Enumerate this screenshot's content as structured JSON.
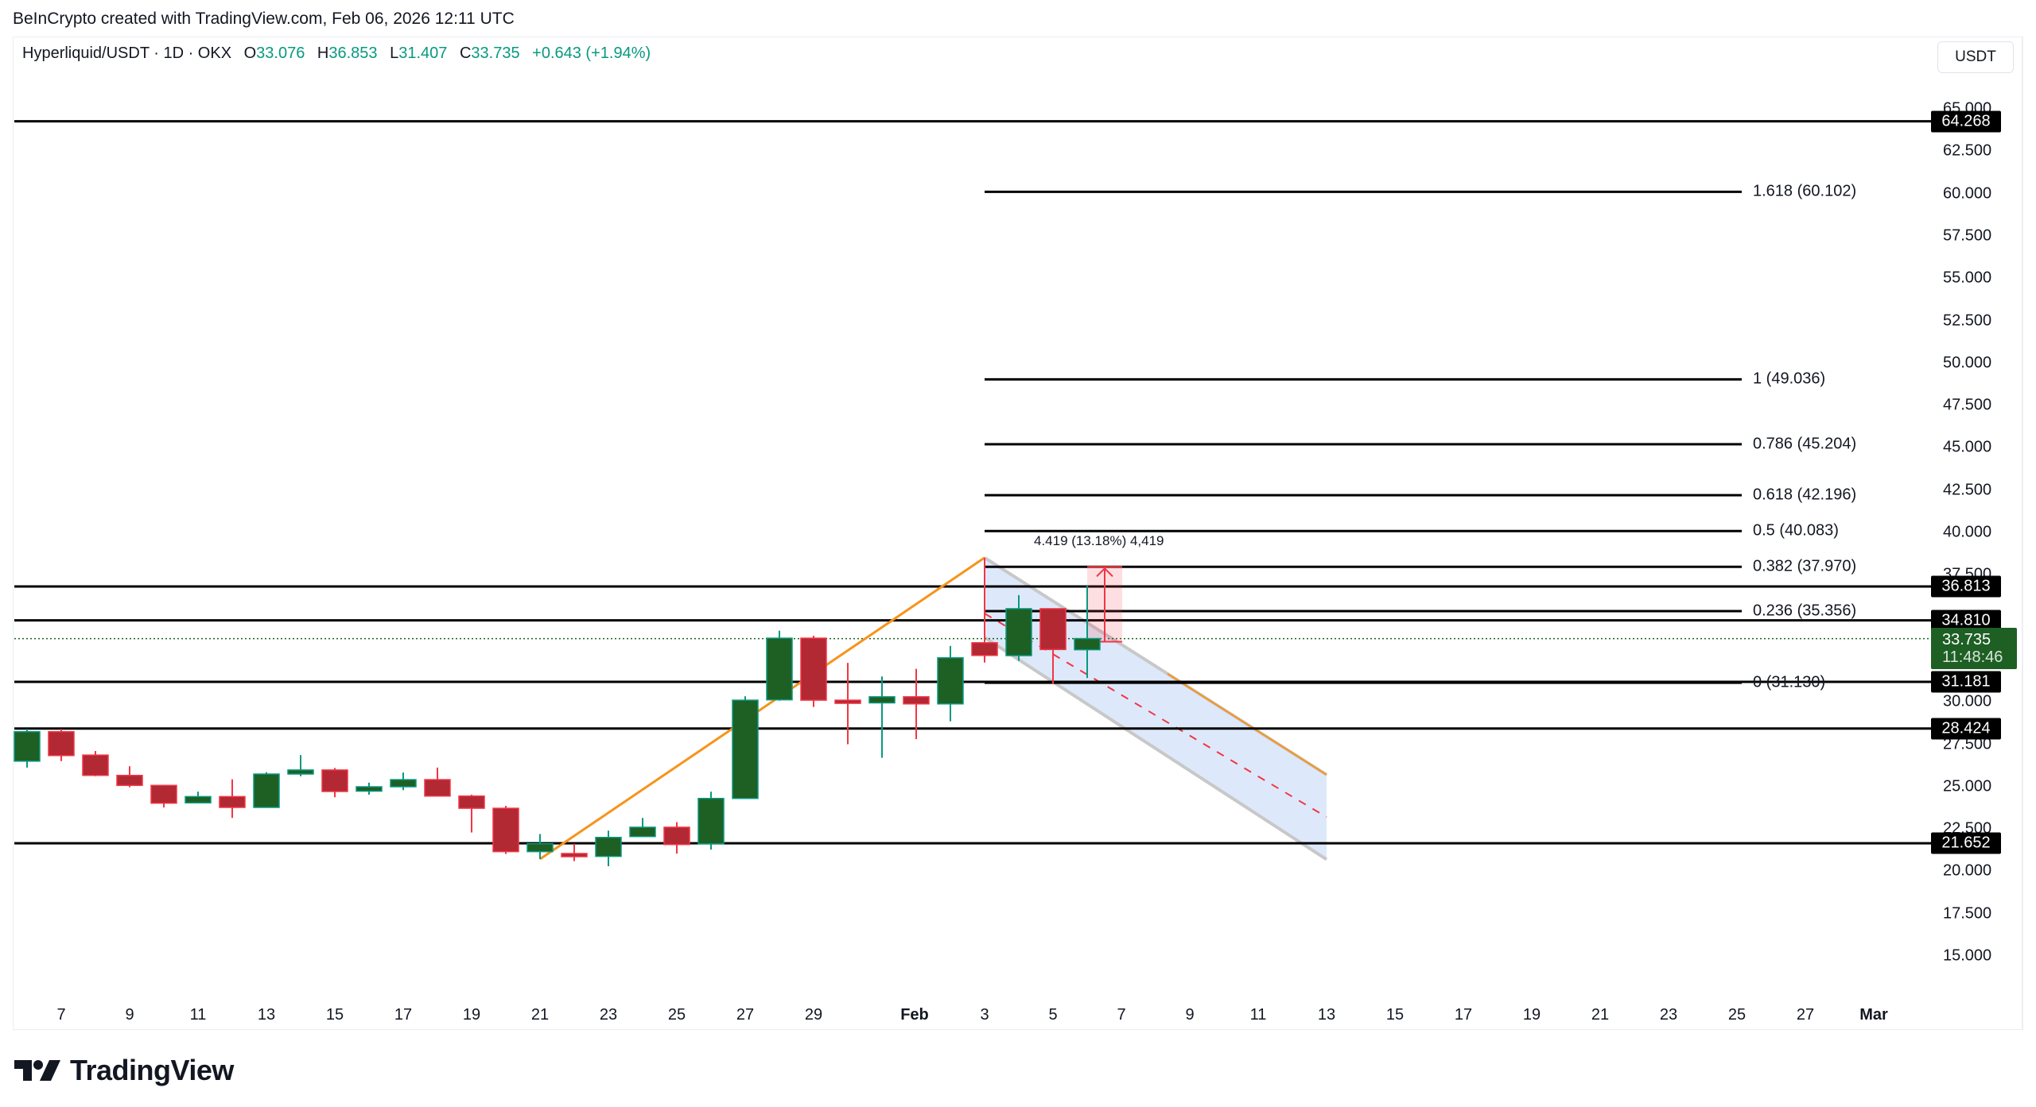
{
  "credit": "BeInCrypto created with TradingView.com, Feb 06, 2026 12:11 UTC",
  "legend": {
    "symbol": "Hyperliquid/USDT · 1D · OKX",
    "o_label": "O",
    "o": "33.076",
    "h_label": "H",
    "h": "36.853",
    "l_label": "L",
    "l": "31.407",
    "c_label": "C",
    "c": "33.735",
    "change": "+0.643 (+1.94%)"
  },
  "currency": "USDT",
  "colors": {
    "up": "#1e5f24",
    "up_border": "#089981",
    "down": "#b22833",
    "down_border": "#f23645",
    "level_line": "#000000",
    "trend_line": "#f7931a",
    "channel_fill": "#dbe8fa",
    "channel_border": "#c8c8c8",
    "channel_mid": "#f23645",
    "last_price": "#1e5f24"
  },
  "y_axis": {
    "ticks": [
      "65.000",
      "62.500",
      "60.000",
      "57.500",
      "55.000",
      "52.500",
      "50.000",
      "47.500",
      "45.000",
      "42.500",
      "40.000",
      "37.500",
      "30.000",
      "27.500",
      "25.000",
      "22.500",
      "20.000",
      "17.500",
      "15.000"
    ]
  },
  "x_axis": {
    "ticks": [
      {
        "label": "7",
        "bold": false
      },
      {
        "label": "9",
        "bold": false
      },
      {
        "label": "11",
        "bold": false
      },
      {
        "label": "13",
        "bold": false
      },
      {
        "label": "15",
        "bold": false
      },
      {
        "label": "17",
        "bold": false
      },
      {
        "label": "19",
        "bold": false
      },
      {
        "label": "21",
        "bold": false
      },
      {
        "label": "23",
        "bold": false
      },
      {
        "label": "25",
        "bold": false
      },
      {
        "label": "27",
        "bold": false
      },
      {
        "label": "29",
        "bold": false
      },
      {
        "label": "Feb",
        "bold": true
      },
      {
        "label": "3",
        "bold": false
      },
      {
        "label": "5",
        "bold": false
      },
      {
        "label": "7",
        "bold": false
      },
      {
        "label": "9",
        "bold": false
      },
      {
        "label": "11",
        "bold": false
      },
      {
        "label": "13",
        "bold": false
      },
      {
        "label": "15",
        "bold": false
      },
      {
        "label": "17",
        "bold": false
      },
      {
        "label": "19",
        "bold": false
      },
      {
        "label": "21",
        "bold": false
      },
      {
        "label": "23",
        "bold": false
      },
      {
        "label": "25",
        "bold": false
      },
      {
        "label": "27",
        "bold": false
      },
      {
        "label": "Mar",
        "bold": true
      }
    ]
  },
  "price_tags": [
    "64.268",
    "36.813",
    "34.810",
    "31.181",
    "28.424",
    "21.652"
  ],
  "last_price": {
    "value": "33.735",
    "countdown": "11:48:46"
  },
  "fib_labels": [
    "1.618 (60.102)",
    "1 (49.036)",
    "0.786 (45.204)",
    "0.618 (42.196)",
    "0.5 (40.083)",
    "0.382 (37.970)",
    "0.236 (35.356)",
    "0 (31.130)"
  ],
  "measure_label": "4.419 (13.18%) 4,419",
  "logo_text": "TradingView",
  "chart_data": {
    "type": "candlestick",
    "title": "Hyperliquid/USDT · 1D · OKX",
    "ylabel": "USDT",
    "ylim": [
      12.5,
      66.5
    ],
    "grid": false,
    "x_range": [
      "Jan 6, 2026",
      "Mar 2, 2026"
    ],
    "candles": [
      {
        "date": "Jan 6",
        "o": 26.5,
        "h": 28.4,
        "l": 26.12,
        "c": 28.24
      },
      {
        "date": "Jan 7",
        "o": 28.24,
        "h": 28.4,
        "l": 26.5,
        "c": 26.83
      },
      {
        "date": "Jan 8",
        "o": 26.86,
        "h": 27.1,
        "l": 25.61,
        "c": 25.66
      },
      {
        "date": "Jan 9",
        "o": 25.66,
        "h": 26.2,
        "l": 24.96,
        "c": 25.07
      },
      {
        "date": "Jan 10",
        "o": 25.07,
        "h": 25.1,
        "l": 23.77,
        "c": 24.02
      },
      {
        "date": "Jan 11",
        "o": 24.04,
        "h": 24.7,
        "l": 24.04,
        "c": 24.41
      },
      {
        "date": "Jan 12",
        "o": 24.41,
        "h": 25.43,
        "l": 23.15,
        "c": 23.77
      },
      {
        "date": "Jan 13",
        "o": 23.77,
        "h": 25.85,
        "l": 23.77,
        "c": 25.74
      },
      {
        "date": "Jan 14",
        "o": 25.74,
        "h": 26.86,
        "l": 25.61,
        "c": 25.98
      },
      {
        "date": "Jan 15",
        "o": 25.98,
        "h": 26.1,
        "l": 24.37,
        "c": 24.71
      },
      {
        "date": "Jan 16",
        "o": 24.73,
        "h": 25.23,
        "l": 24.52,
        "c": 24.99
      },
      {
        "date": "Jan 17",
        "o": 24.99,
        "h": 25.83,
        "l": 24.79,
        "c": 25.41
      },
      {
        "date": "Jan 18",
        "o": 25.41,
        "h": 26.12,
        "l": 24.41,
        "c": 24.44
      },
      {
        "date": "Jan 19",
        "o": 24.44,
        "h": 24.52,
        "l": 22.29,
        "c": 23.72
      },
      {
        "date": "Jan 20",
        "o": 23.72,
        "h": 23.86,
        "l": 21.02,
        "c": 21.16
      },
      {
        "date": "Jan 21",
        "o": 21.16,
        "h": 22.2,
        "l": 20.72,
        "c": 21.63
      },
      {
        "date": "Jan 22",
        "o": 21.05,
        "h": 21.63,
        "l": 20.6,
        "c": 20.95
      },
      {
        "date": "Jan 23",
        "o": 20.88,
        "h": 22.4,
        "l": 20.3,
        "c": 22.0
      },
      {
        "date": "Jan 24",
        "o": 22.05,
        "h": 23.15,
        "l": 22.05,
        "c": 22.6
      },
      {
        "date": "Jan 25",
        "o": 22.6,
        "h": 22.9,
        "l": 21.04,
        "c": 21.58
      },
      {
        "date": "Jan 26",
        "o": 21.62,
        "h": 24.7,
        "l": 21.28,
        "c": 24.3
      },
      {
        "date": "Jan 27",
        "o": 24.3,
        "h": 30.33,
        "l": 24.3,
        "c": 30.1
      },
      {
        "date": "Jan 28",
        "o": 30.12,
        "h": 34.2,
        "l": 30.07,
        "c": 33.76
      },
      {
        "date": "Jan 29",
        "o": 33.76,
        "h": 33.9,
        "l": 29.7,
        "c": 30.1
      },
      {
        "date": "Jan 30",
        "o": 30.1,
        "h": 32.3,
        "l": 27.5,
        "c": 29.94
      },
      {
        "date": "Jan 31",
        "o": 29.94,
        "h": 31.5,
        "l": 26.7,
        "c": 30.3
      },
      {
        "date": "Feb 1",
        "o": 30.3,
        "h": 31.95,
        "l": 27.8,
        "c": 29.88
      },
      {
        "date": "Feb 2",
        "o": 29.88,
        "h": 33.3,
        "l": 28.85,
        "c": 32.6
      },
      {
        "date": "Feb 3",
        "o": 33.49,
        "h": 38.51,
        "l": 32.32,
        "c": 32.74
      },
      {
        "date": "Feb 4",
        "o": 32.73,
        "h": 36.3,
        "l": 32.42,
        "c": 35.5
      },
      {
        "date": "Feb 5",
        "o": 35.5,
        "h": 35.5,
        "l": 31.06,
        "c": 33.09
      },
      {
        "date": "Feb 6",
        "o": 33.076,
        "h": 36.853,
        "l": 31.407,
        "c": 33.735
      }
    ],
    "horizontal_levels": [
      64.268,
      36.813,
      34.81,
      31.181,
      28.424,
      21.652
    ],
    "fibonacci": {
      "from": "Feb 3",
      "to": "Mar 1",
      "levels": [
        {
          "ratio": 1.618,
          "price": 60.102
        },
        {
          "ratio": 1,
          "price": 49.036
        },
        {
          "ratio": 0.786,
          "price": 45.204
        },
        {
          "ratio": 0.618,
          "price": 42.196
        },
        {
          "ratio": 0.5,
          "price": 40.083
        },
        {
          "ratio": 0.382,
          "price": 37.97
        },
        {
          "ratio": 0.236,
          "price": 35.356
        },
        {
          "ratio": 0,
          "price": 31.13
        }
      ]
    },
    "trend_line": {
      "from": {
        "date": "Jan 21",
        "price": 20.72
      },
      "to": {
        "date": "Feb 3",
        "price": 38.51
      }
    },
    "descending_channel": {
      "start_date": "Feb 3",
      "end_date": "Feb 13",
      "upper": [
        38.51,
        25.7
      ],
      "lower": [
        33.8,
        20.7
      ]
    },
    "measure": {
      "date": "Feb 6",
      "from": 33.55,
      "to": 37.97,
      "label": "4.419 (13.18%) 4,419"
    },
    "last_price": 33.735,
    "countdown": "11:48:46"
  }
}
